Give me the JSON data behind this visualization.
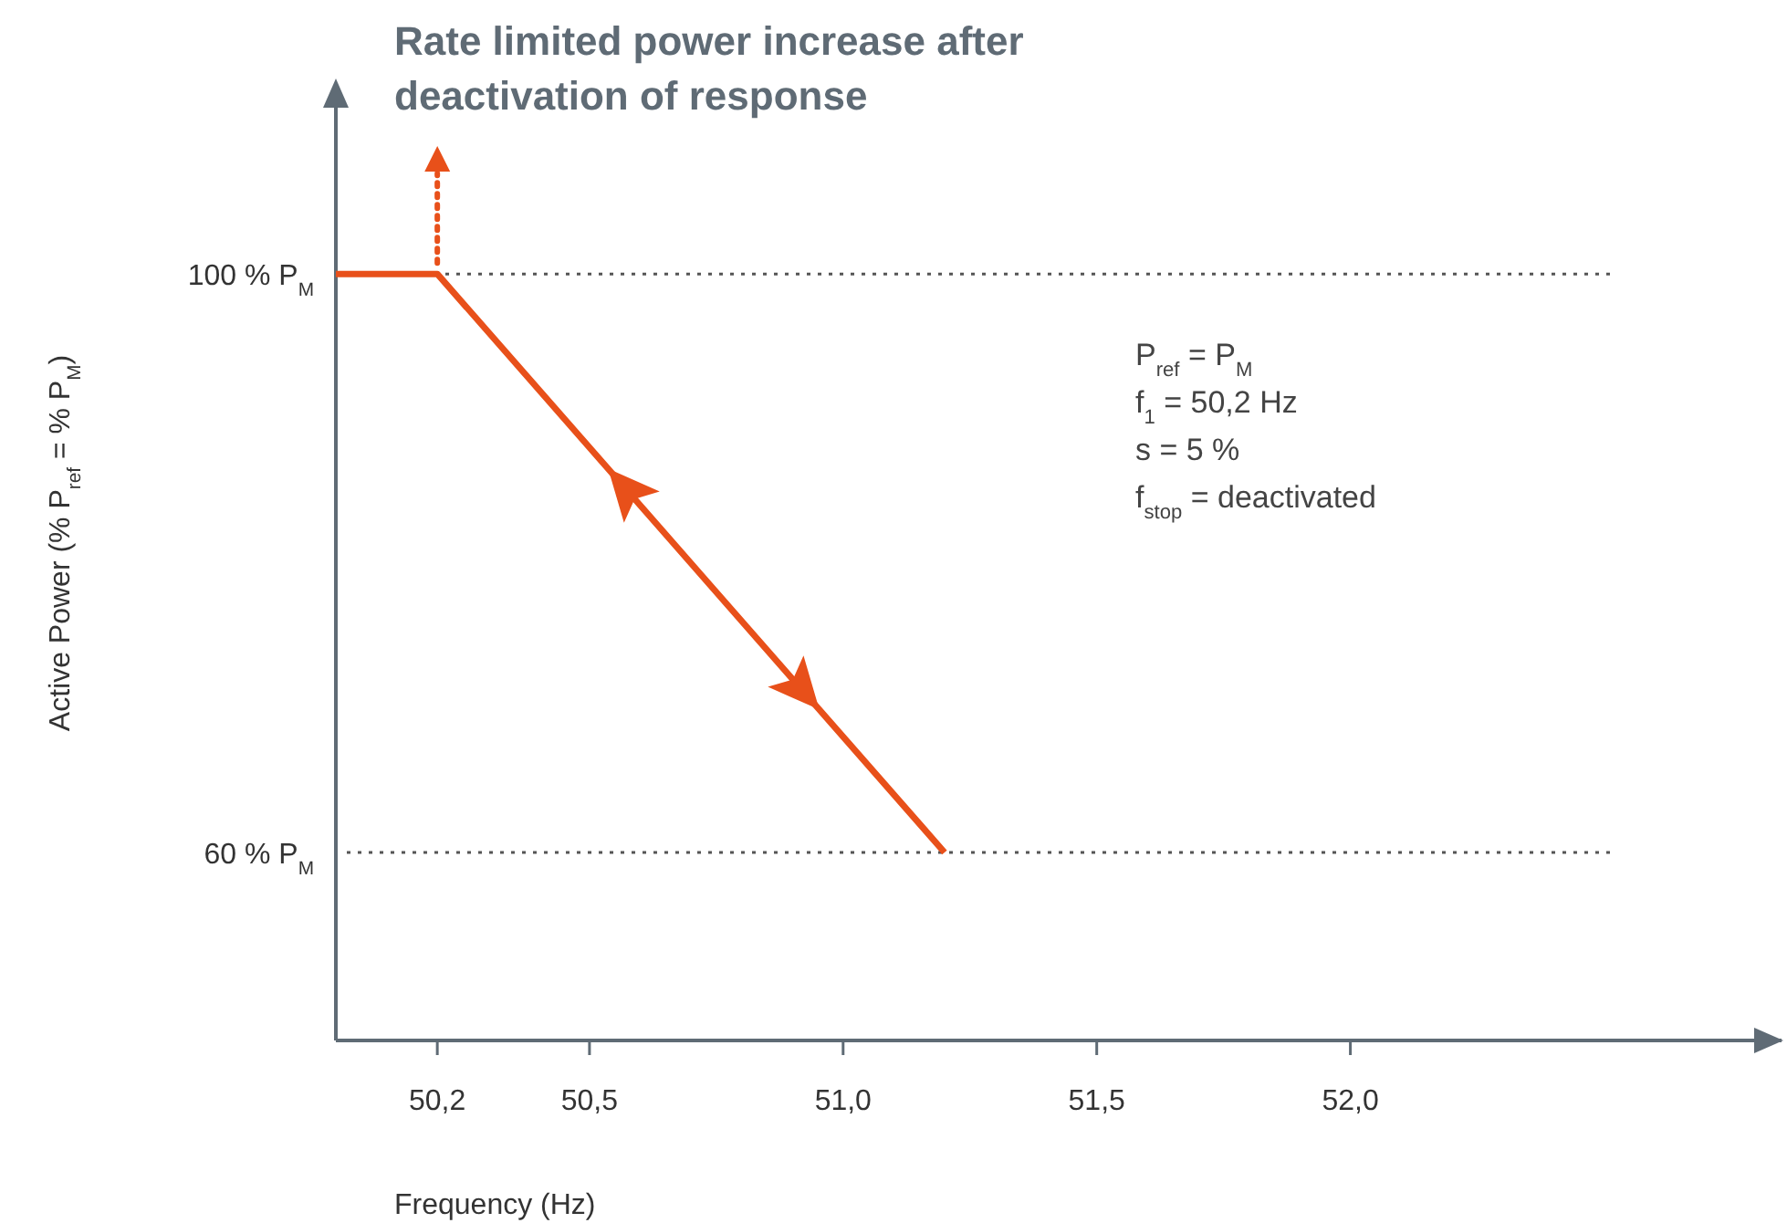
{
  "chart_data": {
    "type": "line",
    "xlabel": "Frequency (Hz)",
    "ylabel": "Active Power (% P$_{ref}$ = % P$_{M}$)",
    "xlim": [
      50.0,
      52.85
    ],
    "ylim": [
      47,
      112
    ],
    "xticks": [
      {
        "value": 50.2,
        "label": "50,2"
      },
      {
        "value": 50.5,
        "label": "50,5"
      },
      {
        "value": 51.0,
        "label": "51,0"
      },
      {
        "value": 51.5,
        "label": "51,5"
      },
      {
        "value": 52.0,
        "label": "52,0"
      }
    ],
    "yticks": [
      {
        "value": 60,
        "label": "60 % P$_{M}$"
      },
      {
        "value": 100,
        "label": "100 % P$_{M}$"
      }
    ],
    "series": [
      {
        "color": "#e8501a",
        "x": [
          50.0,
          50.2,
          51.2
        ],
        "values": [
          100,
          100,
          60
        ]
      }
    ],
    "ref_lines": [
      {
        "axis": "y",
        "value": 100,
        "color": "#555555",
        "line_style": "dotted"
      },
      {
        "axis": "y",
        "value": 60,
        "color": "#555555",
        "line_style": "dotted"
      }
    ],
    "annotations": [
      "Rate limited power increase after deactivation of response",
      "P$_{ref}$ = P$_{M}$",
      "f$_{1}$ = 50,2 Hz",
      "s = 5 %",
      "f$_{stop}$ = deactivated"
    ]
  }
}
